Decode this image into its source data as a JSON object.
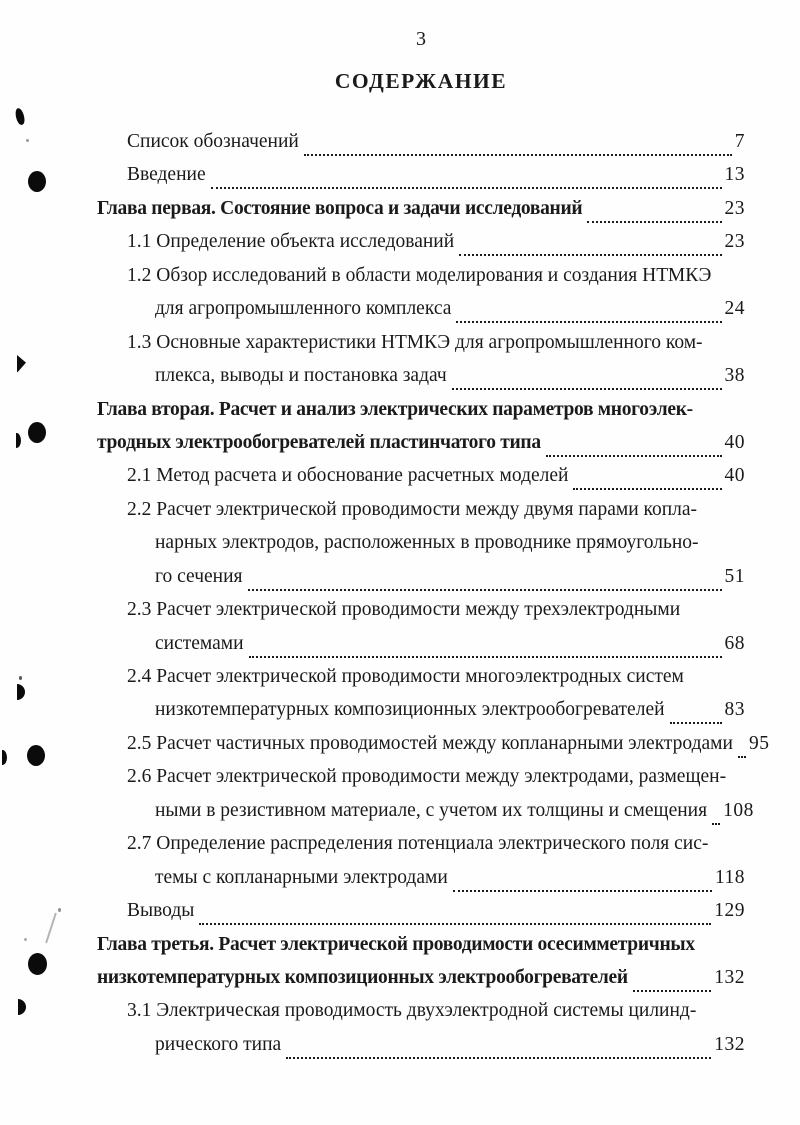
{
  "page": {
    "number": "3",
    "title": "СОДЕРЖАНИЕ"
  },
  "toc": {
    "entries": [
      {
        "style": "item",
        "lines": [
          "Список обозначений"
        ],
        "page": "7"
      },
      {
        "style": "item",
        "lines": [
          "Введение"
        ],
        "page": "13"
      },
      {
        "style": "chapter",
        "lines": [
          "Глава первая. Состояние вопроса и задачи исследований"
        ],
        "page": "23"
      },
      {
        "style": "item",
        "lines": [
          "1.1 Определение объекта исследований"
        ],
        "page": "23"
      },
      {
        "style": "item",
        "lines": [
          "1.2 Обзор исследований в области моделирования  и создания НТМКЭ",
          "для агропромышленного комплекса"
        ],
        "page": "24"
      },
      {
        "style": "item",
        "lines": [
          "1.3 Основные характеристики НТМКЭ для агропромышленного ком-",
          "плекса, выводы и постановка задач"
        ],
        "page": "38"
      },
      {
        "style": "chapter",
        "lines": [
          "Глава вторая. Расчет и анализ электрических параметров многоэлек-",
          "тродных электрообогревателей пластинчатого типа"
        ],
        "page": "40"
      },
      {
        "style": "item",
        "lines": [
          "2.1 Метод расчета и обоснование расчетных моделей"
        ],
        "page": "40"
      },
      {
        "style": "item",
        "lines": [
          "2.2 Расчет электрической проводимости между двумя парами копла-",
          "нарных электродов, расположенных в проводнике прямоугольно-",
          "го сечения"
        ],
        "page": "51"
      },
      {
        "style": "item",
        "lines": [
          "2.3 Расчет электрической проводимости между трехэлектродными",
          "системами"
        ],
        "page": "68"
      },
      {
        "style": "item",
        "lines": [
          "2.4 Расчет электрической проводимости многоэлектродных систем",
          "низкотемпературных композиционных электрообогревателей"
        ],
        "page": "83"
      },
      {
        "style": "item",
        "lines": [
          "2.5 Расчет частичных проводимостей между копланарными электродами"
        ],
        "page": "95"
      },
      {
        "style": "item",
        "lines": [
          "2.6 Расчет электрической проводимости между электродами, размещен-",
          "ными в резистивном материале, с учетом их толщины и смещения"
        ],
        "page": "108"
      },
      {
        "style": "item",
        "lines": [
          "2.7 Определение распределения потенциала электрического поля сис-",
          "темы с копланарными электродами"
        ],
        "page": "118"
      },
      {
        "style": "item",
        "lines": [
          "Выводы"
        ],
        "page": "129"
      },
      {
        "style": "chapter",
        "lines": [
          "Глава третья. Расчет электрической проводимости осесимметричных",
          "низкотемпературных композиционных электрообогревателей"
        ],
        "page": "132"
      },
      {
        "style": "item",
        "lines": [
          "3.1 Электрическая проводимость двухэлектродной системы цилинд-",
          "рического типа"
        ],
        "page": "132"
      }
    ]
  },
  "artifacts": [
    "ink-blob",
    "paper-speck",
    "punch-hole-dot",
    "ink-wedge",
    "punch-hole-dot",
    "ink-sliver",
    "ink-half-disc",
    "punch-hole-dot",
    "ink-sliver",
    "scratch-stroke",
    "punch-hole-dot",
    "ink-half-disc"
  ]
}
